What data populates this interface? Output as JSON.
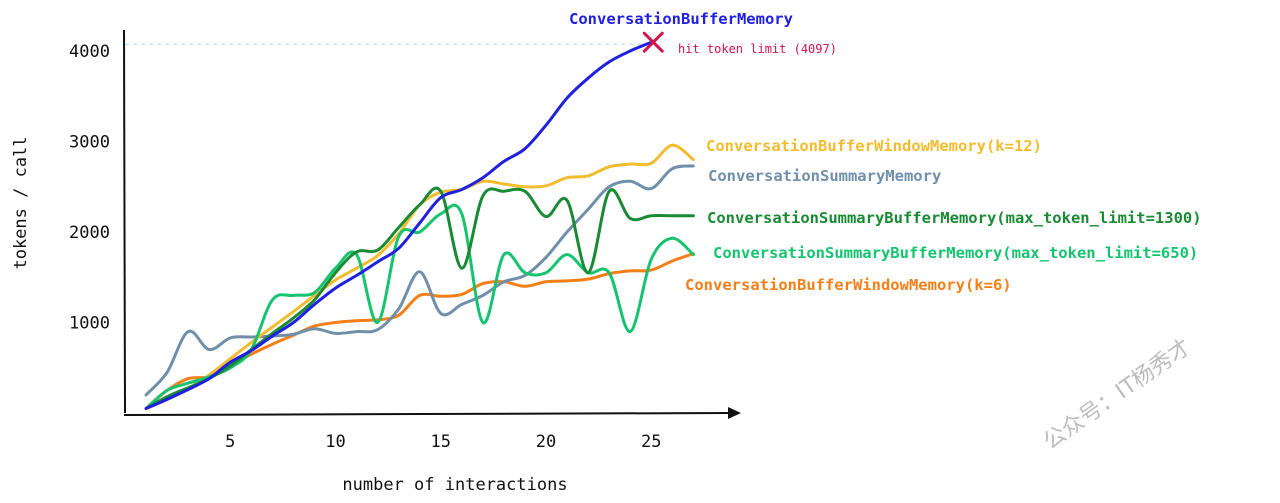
{
  "chart_data": {
    "type": "line",
    "title": "",
    "xlabel": "number of interactions",
    "ylabel": "tokens / call",
    "xlim": [
      0,
      28
    ],
    "ylim": [
      0,
      4300
    ],
    "x_ticks": [
      5,
      10,
      15,
      20,
      25
    ],
    "y_ticks": [
      1000,
      2000,
      3000,
      4000
    ],
    "grid": false,
    "limit_line": {
      "y": 4097,
      "label": "hit token limit (4097)",
      "color": "#d1144a"
    },
    "series": [
      {
        "name": "ConversationBufferMemory",
        "color": "#2020e0",
        "x": [
          1,
          2,
          3,
          4,
          5,
          6,
          7,
          8,
          9,
          10,
          11,
          12,
          13,
          14,
          15,
          16,
          17,
          18,
          19,
          20,
          21,
          22,
          23,
          24,
          25
        ],
        "y": [
          50,
          150,
          260,
          380,
          560,
          690,
          850,
          1000,
          1200,
          1380,
          1520,
          1670,
          1820,
          2100,
          2380,
          2470,
          2600,
          2780,
          2920,
          3180,
          3480,
          3700,
          3880,
          4000,
          4097
        ]
      },
      {
        "name": "ConversationBufferWindowMemory(k=12)",
        "color": "#f2bc2e",
        "x": [
          1,
          2,
          3,
          4,
          5,
          6,
          7,
          8,
          9,
          10,
          11,
          12,
          13,
          14,
          15,
          16,
          17,
          18,
          19,
          20,
          21,
          22,
          23,
          24,
          25,
          26,
          27
        ],
        "y": [
          50,
          150,
          270,
          420,
          600,
          780,
          950,
          1120,
          1300,
          1470,
          1600,
          1740,
          1980,
          2300,
          2440,
          2470,
          2560,
          2530,
          2500,
          2510,
          2600,
          2620,
          2720,
          2750,
          2760,
          2960,
          2800
        ]
      },
      {
        "name": "ConversationSummaryMemory",
        "color": "#6f8fab",
        "x": [
          1,
          2,
          3,
          4,
          5,
          6,
          7,
          8,
          9,
          10,
          11,
          12,
          13,
          14,
          15,
          16,
          17,
          18,
          19,
          20,
          21,
          22,
          23,
          24,
          25,
          26,
          27
        ],
        "y": [
          200,
          450,
          900,
          700,
          830,
          840,
          850,
          870,
          930,
          880,
          900,
          920,
          1150,
          1560,
          1100,
          1200,
          1300,
          1450,
          1520,
          1720,
          2000,
          2250,
          2500,
          2560,
          2480,
          2700,
          2730
        ]
      },
      {
        "name": "ConversationSummaryBufferMemory(max_token_limit=1300)",
        "color": "#1a8a34",
        "x": [
          1,
          2,
          3,
          4,
          5,
          6,
          7,
          8,
          9,
          10,
          11,
          12,
          13,
          14,
          15,
          16,
          17,
          18,
          19,
          20,
          21,
          22,
          23,
          24,
          25,
          26,
          27
        ],
        "y": [
          50,
          180,
          280,
          380,
          520,
          700,
          880,
          1050,
          1250,
          1550,
          1780,
          1800,
          2050,
          2300,
          2450,
          1600,
          2400,
          2450,
          2450,
          2170,
          2350,
          1550,
          2450,
          2150,
          2180,
          2180,
          2180
        ]
      },
      {
        "name": "ConversationSummaryBufferMemory(max_token_limit=650)",
        "color": "#16c46f",
        "x": [
          1,
          2,
          3,
          4,
          5,
          6,
          7,
          8,
          9,
          10,
          11,
          12,
          13,
          14,
          15,
          16,
          17,
          18,
          19,
          20,
          21,
          22,
          23,
          24,
          25,
          26,
          27
        ],
        "y": [
          50,
          250,
          330,
          400,
          500,
          700,
          1250,
          1300,
          1330,
          1600,
          1750,
          1000,
          1950,
          2000,
          2200,
          2200,
          1000,
          1750,
          1550,
          1550,
          1750,
          1550,
          1550,
          900,
          1700,
          1930,
          1750
        ]
      },
      {
        "name": "ConversationBufferWindowMemory(k=6)",
        "color": "#f57f17",
        "x": [
          1,
          2,
          3,
          4,
          5,
          6,
          7,
          8,
          9,
          10,
          11,
          12,
          13,
          14,
          15,
          16,
          17,
          18,
          19,
          20,
          21,
          22,
          23,
          24,
          25,
          26,
          27
        ],
        "y": [
          50,
          250,
          380,
          400,
          520,
          650,
          760,
          860,
          960,
          1000,
          1020,
          1030,
          1080,
          1300,
          1290,
          1310,
          1430,
          1450,
          1400,
          1450,
          1460,
          1480,
          1540,
          1570,
          1580,
          1680,
          1760
        ]
      }
    ]
  },
  "watermark": "公众号：IT杨秀才"
}
